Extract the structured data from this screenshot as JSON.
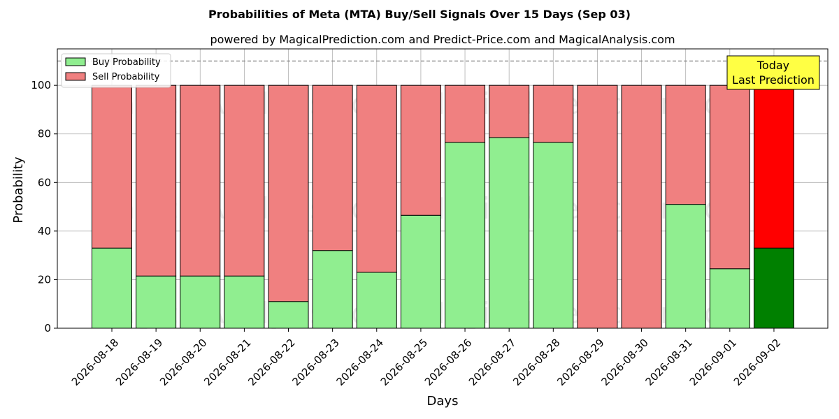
{
  "chart_data": {
    "type": "bar",
    "stacked": true,
    "title": "Probabilities of Meta (MTA) Buy/Sell Signals Over 15 Days (Sep 03)",
    "subtitle": "powered by MagicalPrediction.com and Predict-Price.com and MagicalAnalysis.com",
    "xlabel": "Days",
    "ylabel": "Probability",
    "ylim": [
      0,
      115
    ],
    "yticks": [
      0,
      20,
      40,
      60,
      80,
      100
    ],
    "reference_line": 110,
    "grid": true,
    "legend_position": "top-left",
    "categories": [
      "2026-08-18",
      "2026-08-19",
      "2026-08-20",
      "2026-08-21",
      "2026-08-22",
      "2026-08-23",
      "2026-08-24",
      "2026-08-25",
      "2026-08-26",
      "2026-08-27",
      "2026-08-28",
      "2026-08-29",
      "2026-08-30",
      "2026-08-31",
      "2026-09-01",
      "2026-09-02"
    ],
    "series": [
      {
        "name": "Buy Probability",
        "color": "#90ee90",
        "highlight_color": "#008000",
        "values": [
          33,
          21.5,
          21.5,
          21.5,
          11,
          32,
          23,
          46.5,
          76.5,
          78.5,
          76.5,
          0,
          0,
          51,
          24.5,
          33
        ]
      },
      {
        "name": "Sell Probability",
        "color": "#f08080",
        "highlight_color": "#ff0000",
        "values": [
          67,
          78.5,
          78.5,
          78.5,
          89,
          68,
          77,
          53.5,
          23.5,
          21.5,
          23.5,
          100,
          100,
          49,
          75.5,
          67
        ]
      }
    ],
    "annotation": {
      "lines": [
        "Today",
        "Last Prediction"
      ],
      "position": "top-right",
      "color": "#ffff44"
    },
    "watermarks": [
      "MagicalAnalysis.com",
      "MagicalPrediction.com"
    ]
  }
}
